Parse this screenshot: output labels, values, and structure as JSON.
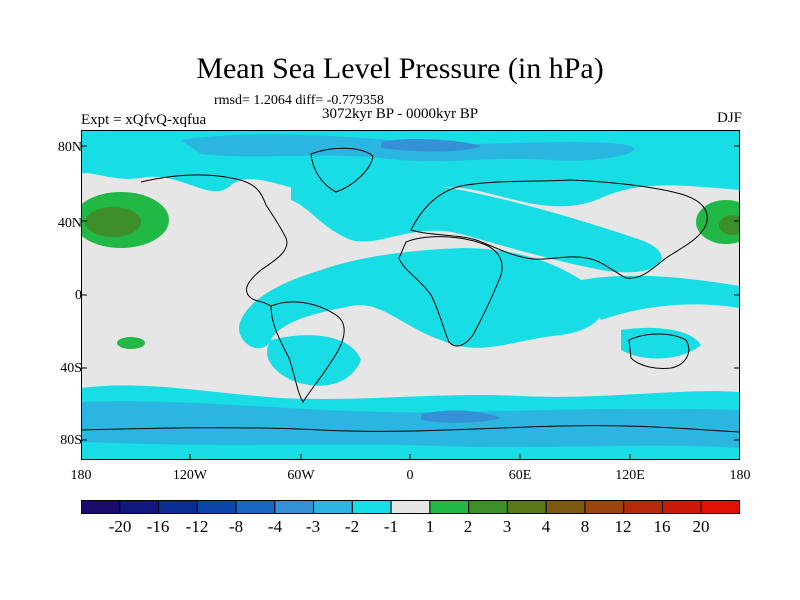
{
  "title": "Mean Sea Level Pressure (in hPa)",
  "rmsd_line": "rmsd= 1.2064 diff= -0.779358",
  "experiment": "Expt = xQfvQ-xqfua",
  "period": "3072kyr BP - 0000kyr BP",
  "season": "DJF",
  "lat_labels": [
    "80N",
    "40N",
    "0",
    "40S",
    "80S"
  ],
  "lon_labels": [
    "180",
    "120W",
    "60W",
    "0",
    "60E",
    "120E",
    "180"
  ],
  "colorbar": {
    "labels": [
      "-20",
      "-16",
      "-12",
      "-8",
      "-4",
      "-3",
      "-2",
      "-1",
      "1",
      "2",
      "3",
      "4",
      "8",
      "12",
      "16",
      "20"
    ],
    "colors": [
      "#1a0a6b",
      "#12197e",
      "#0a2d96",
      "#0b45aa",
      "#1a66c2",
      "#3590d6",
      "#2ab6e0",
      "#18dde4",
      "#e6e6e6",
      "#22b845",
      "#3d8f2c",
      "#5a7a1a",
      "#7d5a14",
      "#9a4510",
      "#b52a0c",
      "#cc1a0a",
      "#e01208"
    ]
  },
  "colors": {
    "background": "#e6e6e6",
    "light_cyan": "#18dde4",
    "cyan": "#2ab6e0",
    "mid_blue": "#3590d6",
    "blue": "#1a66c2",
    "green": "#22b845",
    "dark_green": "#3d8f2c",
    "coast": "#000000"
  }
}
